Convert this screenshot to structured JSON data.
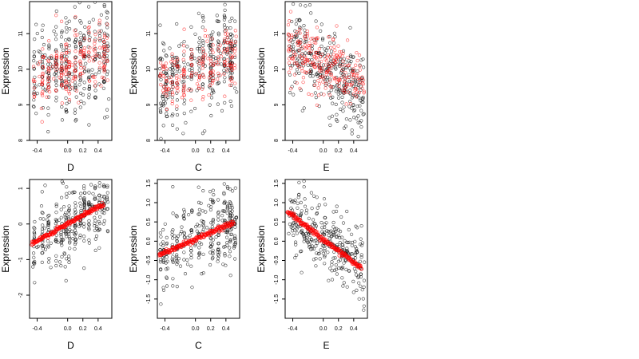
{
  "chart_data": [
    {
      "type": "scatter",
      "xlabel": "D",
      "ylabel": "Expression",
      "xlim": [
        -0.5,
        0.58
      ],
      "ylim": [
        8.0,
        11.9
      ],
      "xticks": [
        "-0.4",
        "0.0",
        "0.2",
        "0.4"
      ],
      "xtick_values": [
        -0.4,
        0.0,
        0.2,
        0.4
      ],
      "yticks": [
        "8",
        "9",
        "10",
        "11"
      ],
      "ytick_values": [
        8,
        9,
        10,
        11
      ],
      "x_columns": [
        -0.44,
        -0.33,
        -0.25,
        -0.15,
        -0.08,
        -0.02,
        0.02,
        0.1,
        0.17,
        0.22,
        0.28,
        0.36,
        0.42,
        0.48,
        0.52
      ],
      "observed": {
        "color": "#000000",
        "count": 320,
        "center": 10.1,
        "spread": 0.75,
        "slope": 0.8
      },
      "fitted": {
        "color": "#ff0000",
        "count": 220,
        "center": 10.05,
        "spread": 0.45,
        "slope": 0.7
      },
      "grid": false
    },
    {
      "type": "scatter",
      "xlabel": "C",
      "ylabel": "Expression",
      "xlim": [
        -0.5,
        0.58
      ],
      "ylim": [
        8.0,
        11.9
      ],
      "xticks": [
        "-0.4",
        "0.0",
        "0.2",
        "0.4"
      ],
      "xtick_values": [
        -0.4,
        0.0,
        0.2,
        0.4
      ],
      "yticks": [
        "8",
        "9",
        "10",
        "11"
      ],
      "ytick_values": [
        8,
        9,
        10,
        11
      ],
      "x_columns": [
        -0.46,
        -0.42,
        -0.38,
        -0.3,
        -0.24,
        -0.15,
        -0.05,
        0.05,
        0.1,
        0.2,
        0.23,
        0.3,
        0.38,
        0.42,
        0.46,
        0.48,
        0.52
      ],
      "observed": {
        "color": "#000000",
        "count": 320,
        "center": 10.05,
        "spread": 0.65,
        "slope": 0.9
      },
      "fitted": {
        "color": "#ff0000",
        "count": 200,
        "center": 10.0,
        "spread": 0.4,
        "slope": 0.8
      },
      "grid": false
    },
    {
      "type": "scatter",
      "xlabel": "E",
      "ylabel": "Expression",
      "xlim": [
        -0.5,
        0.58
      ],
      "ylim": [
        8.0,
        11.9
      ],
      "xticks": [
        "-0.4",
        "0.0",
        "0.2",
        "0.4"
      ],
      "xtick_values": [
        -0.4,
        0.0,
        0.2,
        0.4
      ],
      "yticks": [
        "8",
        "9",
        "10",
        "11"
      ],
      "ytick_values": [
        8,
        9,
        10,
        11
      ],
      "x_columns": [],
      "observed": {
        "color": "#000000",
        "count": 320,
        "center": 10.0,
        "spread": 0.6,
        "slope": -1.2
      },
      "fitted": {
        "color": "#ff0000",
        "count": 240,
        "center": 10.1,
        "spread": 0.45,
        "slope": -1.0
      },
      "grid": false
    },
    {
      "type": "scatter",
      "xlabel": "D",
      "ylabel": "Expression",
      "xlim": [
        -0.5,
        0.58
      ],
      "ylim": [
        -2.65,
        1.25
      ],
      "xticks": [
        "-0.4",
        "0.0",
        "0.2",
        "0.4"
      ],
      "xtick_values": [
        -0.4,
        0.0,
        0.2,
        0.4
      ],
      "yticks": [
        "-2",
        "-1",
        "0",
        "1"
      ],
      "ytick_values": [
        -2,
        -1,
        0,
        1
      ],
      "x_columns": [
        -0.44,
        -0.33,
        -0.25,
        -0.15,
        -0.08,
        -0.02,
        0.02,
        0.1,
        0.17,
        0.22,
        0.28,
        0.36,
        0.42,
        0.48,
        0.52
      ],
      "observed": {
        "color": "#000000",
        "count": 320,
        "intercept": 0.0,
        "slope": 1.2,
        "spread": 0.5
      },
      "fitted": {
        "color": "#ff0000",
        "intercept": 0.0,
        "slope": 1.2,
        "x_range": [
          -0.47,
          0.47
        ]
      },
      "grid": false
    },
    {
      "type": "scatter",
      "xlabel": "C",
      "ylabel": "Expression",
      "xlim": [
        -0.5,
        0.58
      ],
      "ylim": [
        -2.0,
        1.6
      ],
      "xticks": [
        "-0.4",
        "0.0",
        "0.2",
        "0.4"
      ],
      "xtick_values": [
        -0.4,
        0.0,
        0.2,
        0.4
      ],
      "yticks": [
        "-1.5",
        "-1.0",
        "-0.5",
        "0.0",
        "0.5",
        "1.0",
        "1.5"
      ],
      "ytick_values": [
        -1.5,
        -1.0,
        -0.5,
        0.0,
        0.5,
        1.0,
        1.5
      ],
      "x_columns": [
        -0.46,
        -0.42,
        -0.38,
        -0.3,
        -0.24,
        -0.15,
        -0.05,
        0.05,
        0.1,
        0.2,
        0.23,
        0.3,
        0.38,
        0.42,
        0.46,
        0.48,
        0.52
      ],
      "observed": {
        "color": "#000000",
        "count": 320,
        "intercept": 0.05,
        "slope": 0.9,
        "spread": 0.45
      },
      "fitted": {
        "color": "#ff0000",
        "intercept": 0.05,
        "slope": 0.85,
        "x_range": [
          -0.48,
          0.5
        ]
      },
      "grid": false
    },
    {
      "type": "scatter",
      "xlabel": "E",
      "ylabel": "Expression",
      "xlim": [
        -0.5,
        0.58
      ],
      "ylim": [
        -2.0,
        1.6
      ],
      "xticks": [
        "-0.4",
        "0.0",
        "0.2",
        "0.4"
      ],
      "xtick_values": [
        -0.4,
        0.0,
        0.2,
        0.4
      ],
      "yticks": [
        "-1.5",
        "-1.0",
        "-0.5",
        "0.0",
        "0.5",
        "1.0",
        "1.5"
      ],
      "ytick_values": [
        -1.5,
        -1.0,
        -0.5,
        0.0,
        0.5,
        1.0,
        1.5
      ],
      "x_columns": [],
      "observed": {
        "color": "#000000",
        "count": 320,
        "intercept": 0.05,
        "slope": -1.4,
        "spread": 0.45
      },
      "fitted": {
        "color": "#ff0000",
        "intercept": 0.05,
        "slope": -1.5,
        "x_range": [
          -0.47,
          0.5
        ]
      },
      "grid": false
    }
  ]
}
